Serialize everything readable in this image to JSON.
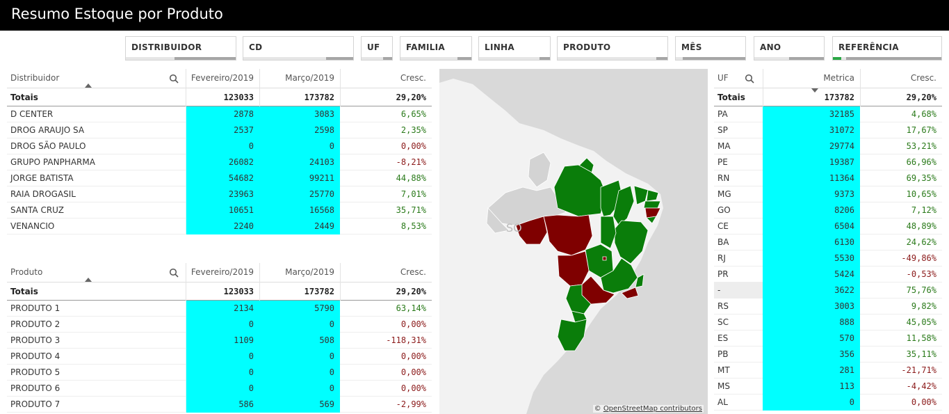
{
  "title": "Resumo Estoque por Produto",
  "filters": [
    "DISTRIBUIDOR",
    "CD",
    "UF",
    "FAMILIA",
    "LINHA",
    "PRODUTO",
    "MÊS",
    "ANO",
    "REFERÊNCIA"
  ],
  "distribuidor_table": {
    "headers": [
      "Distribuidor",
      "Fevereiro/2019",
      "Março/2019",
      "Cresc."
    ],
    "totals": {
      "label": "Totais",
      "feb": "123033",
      "mar": "173782",
      "cresc": "29,20%"
    },
    "rows": [
      {
        "name": "D CENTER",
        "feb": "2878",
        "mar": "3083",
        "cresc": "6,65%",
        "sign": "pos"
      },
      {
        "name": "DROG ARAUJO SA",
        "feb": "2537",
        "mar": "2598",
        "cresc": "2,35%",
        "sign": "pos"
      },
      {
        "name": "DROG SÃO PAULO",
        "feb": "0",
        "mar": "0",
        "cresc": "0,00%",
        "sign": "zero"
      },
      {
        "name": "GRUPO PANPHARMA",
        "feb": "26082",
        "mar": "24103",
        "cresc": "-8,21%",
        "sign": "neg"
      },
      {
        "name": "JORGE BATISTA",
        "feb": "54682",
        "mar": "99211",
        "cresc": "44,88%",
        "sign": "pos"
      },
      {
        "name": "RAIA DROGASIL",
        "feb": "23963",
        "mar": "25770",
        "cresc": "7,01%",
        "sign": "pos"
      },
      {
        "name": "SANTA CRUZ",
        "feb": "10651",
        "mar": "16568",
        "cresc": "35,71%",
        "sign": "pos"
      },
      {
        "name": "VENANCIO",
        "feb": "2240",
        "mar": "2449",
        "cresc": "8,53%",
        "sign": "pos"
      }
    ]
  },
  "produto_table": {
    "headers": [
      "Produto",
      "Fevereiro/2019",
      "Março/2019",
      "Cresc."
    ],
    "totals": {
      "label": "Totais",
      "feb": "123033",
      "mar": "173782",
      "cresc": "29,20%"
    },
    "rows": [
      {
        "name": "PRODUTO 1",
        "feb": "2134",
        "mar": "5790",
        "cresc": "63,14%",
        "sign": "pos"
      },
      {
        "name": "PRODUTO 2",
        "feb": "0",
        "mar": "0",
        "cresc": "0,00%",
        "sign": "zero"
      },
      {
        "name": "PRODUTO 3",
        "feb": "1109",
        "mar": "508",
        "cresc": "-118,31%",
        "sign": "neg"
      },
      {
        "name": "PRODUTO 4",
        "feb": "0",
        "mar": "0",
        "cresc": "0,00%",
        "sign": "zero"
      },
      {
        "name": "PRODUTO 5",
        "feb": "0",
        "mar": "0",
        "cresc": "0,00%",
        "sign": "zero"
      },
      {
        "name": "PRODUTO 6",
        "feb": "0",
        "mar": "0",
        "cresc": "0,00%",
        "sign": "zero"
      },
      {
        "name": "PRODUTO 7",
        "feb": "586",
        "mar": "569",
        "cresc": "-2,99%",
        "sign": "neg"
      }
    ]
  },
  "uf_table": {
    "headers": [
      "UF",
      "Metrica",
      "Cresc."
    ],
    "totals": {
      "label": "Totais",
      "metric": "173782",
      "cresc": "29,20%"
    },
    "rows": [
      {
        "uf": "PA",
        "metric": "32185",
        "cresc": "4,68%",
        "sign": "pos"
      },
      {
        "uf": "SP",
        "metric": "31072",
        "cresc": "17,67%",
        "sign": "pos"
      },
      {
        "uf": "MA",
        "metric": "29774",
        "cresc": "53,21%",
        "sign": "pos"
      },
      {
        "uf": "PE",
        "metric": "19387",
        "cresc": "66,96%",
        "sign": "pos"
      },
      {
        "uf": "RN",
        "metric": "11364",
        "cresc": "69,35%",
        "sign": "pos"
      },
      {
        "uf": "MG",
        "metric": "9373",
        "cresc": "10,65%",
        "sign": "pos"
      },
      {
        "uf": "GO",
        "metric": "8206",
        "cresc": "7,12%",
        "sign": "pos"
      },
      {
        "uf": "CE",
        "metric": "6504",
        "cresc": "48,89%",
        "sign": "pos"
      },
      {
        "uf": "BA",
        "metric": "6130",
        "cresc": "24,62%",
        "sign": "pos"
      },
      {
        "uf": "RJ",
        "metric": "5530",
        "cresc": "-49,86%",
        "sign": "neg"
      },
      {
        "uf": "PR",
        "metric": "5424",
        "cresc": "-0,53%",
        "sign": "neg"
      },
      {
        "uf": "-",
        "metric": "3622",
        "cresc": "75,76%",
        "sign": "pos"
      },
      {
        "uf": "RS",
        "metric": "3003",
        "cresc": "9,82%",
        "sign": "pos"
      },
      {
        "uf": "SC",
        "metric": "888",
        "cresc": "45,05%",
        "sign": "pos"
      },
      {
        "uf": "ES",
        "metric": "570",
        "cresc": "11,58%",
        "sign": "pos"
      },
      {
        "uf": "PB",
        "metric": "356",
        "cresc": "35,11%",
        "sign": "pos"
      },
      {
        "uf": "MT",
        "metric": "281",
        "cresc": "-21,71%",
        "sign": "neg"
      },
      {
        "uf": "MS",
        "metric": "113",
        "cresc": "-4,42%",
        "sign": "neg"
      },
      {
        "uf": "AL",
        "metric": "0",
        "cresc": "0,00%",
        "sign": "zero"
      }
    ]
  },
  "map": {
    "attribution_prefix": "©",
    "attribution_link": "OpenStreetMap contributors",
    "label_fragment": "SO",
    "colors": {
      "positive": "#0a7d0a",
      "negative": "#7f0000",
      "nodata": "#d3d3d3",
      "land": "#f2f2f2",
      "water": "#d9d9d9"
    }
  },
  "colors": {
    "cyan": "#00ffff",
    "positive_text": "#2a7a1a",
    "negative_text": "#8b1a1a"
  }
}
